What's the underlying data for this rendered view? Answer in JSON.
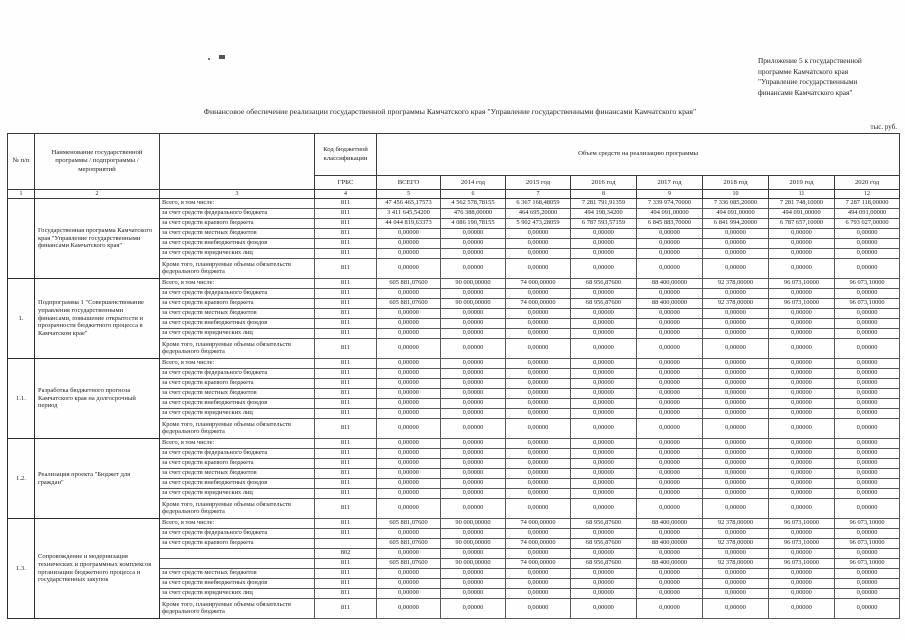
{
  "page": {
    "annotation": "Приложение 5 к государственной\nпрограмме Камчатского края\n\"Управление государственными\nфинансами Камчатского края\"",
    "title": "Финансовое обеспечение реализации государственной программы Камчатского края  \"Управление государственными финансами Камчатского края\"",
    "units": "тыс. руб."
  },
  "table": {
    "headers": {
      "num": "№ п/п",
      "name": "Наименование государственной программы / подпрограммы / мероприятий",
      "sublabel": "",
      "code_group": "Код бюджетной классификации",
      "grbs": "ГРБС",
      "volume_group": "Объем средств на реализацию программы",
      "cols": [
        "ВСЕГО",
        "2014 год",
        "2015 год",
        "2016 год",
        "2017 год",
        "2018 год",
        "2019 год",
        "2020 год"
      ],
      "col_numbers": [
        "1",
        "2",
        "3",
        "4",
        "5",
        "6",
        "7",
        "8",
        "9",
        "10",
        "11",
        "12"
      ]
    },
    "blocks": [
      {
        "num": "",
        "name": "Государственная программа Камчатского края \"Управление государственными финансами Камчатского края\"",
        "rows": [
          {
            "label": "Всего, в том числе:",
            "grbs": "811",
            "tall": false,
            "values": [
              "47 456 465,17573",
              "4 562 578,78155",
              "6 367 168,48059",
              "7 281 791,91359",
              "7 339 974,70000",
              "7 336 085,20000",
              "7 281 748,10000",
              "7 287 118,00000"
            ]
          },
          {
            "label": "за счет средств федерального бюджета",
            "grbs": "811",
            "tall": false,
            "values": [
              "3 411 645,54200",
              "476 388,00000",
              "464 695,20000",
              "494 198,34200",
              "494 091,00000",
              "494 091,00000",
              "494 091,00000",
              "494 091,00000"
            ]
          },
          {
            "label": "за счет средств краевого бюджета",
            "grbs": "811",
            "tall": false,
            "values": [
              "44 044 819,63373",
              "4 086 190,78155",
              "5 902 473,28059",
              "6 787 593,57159",
              "6 845 883,70000",
              "6 841 994,20000",
              "6 787 657,10000",
              "6 793 027,00000"
            ]
          },
          {
            "label": "за счет средств местных бюджетов",
            "grbs": "811",
            "tall": false,
            "values": [
              "0,00000",
              "0,00000",
              "0,00000",
              "0,00000",
              "0,00000",
              "0,00000",
              "0,00000",
              "0,00000"
            ]
          },
          {
            "label": "за счет средств внебюджетных фондов",
            "grbs": "811",
            "tall": false,
            "values": [
              "0,00000",
              "0,00000",
              "0,00000",
              "0,00000",
              "0,00000",
              "0,00000",
              "0,00000",
              "0,00000"
            ]
          },
          {
            "label": "за счет средств юридических лиц",
            "grbs": "811",
            "tall": false,
            "values": [
              "0,00000",
              "0,00000",
              "0,00000",
              "0,00000",
              "0,00000",
              "0,00000",
              "0,00000",
              "0,00000"
            ]
          },
          {
            "label": "Кроме того, планируемые объемы обязательств федерального бюджета",
            "grbs": "811",
            "tall": true,
            "values": [
              "0,00000",
              "0,00000",
              "0,00000",
              "0,00000",
              "0,00000",
              "0,00000",
              "0,00000",
              "0,00000"
            ]
          }
        ]
      },
      {
        "num": "1.",
        "name": "Подпрограмма 1 \"Совершенствование управления государственными финансами, повышение открытости и прозрачности бюджетного процесса в Камчатском крае\"",
        "rows": [
          {
            "label": "Всего, в том числе:",
            "grbs": "811",
            "tall": false,
            "values": [
              "605 881,07600",
              "90 000,00000",
              "74 000,00000",
              "68 956,87600",
              "88 400,00000",
              "92 378,00000",
              "96 073,10000",
              "96 073,10000"
            ]
          },
          {
            "label": "за счет средств федерального бюджета",
            "grbs": "811",
            "tall": false,
            "values": [
              "0,00000",
              "0,00000",
              "0,00000",
              "0,00000",
              "0,00000",
              "0,00000",
              "0,00000",
              "0,00000"
            ]
          },
          {
            "label": "за счет средств краевого бюджета",
            "grbs": "811",
            "tall": false,
            "values": [
              "605 881,07600",
              "90 000,00000",
              "74 000,00000",
              "68 956,87600",
              "88 400,00000",
              "92 378,00000",
              "96 073,10000",
              "96 073,10000"
            ]
          },
          {
            "label": "за счет средств местных бюджетов",
            "grbs": "811",
            "tall": false,
            "values": [
              "0,00000",
              "0,00000",
              "0,00000",
              "0,00000",
              "0,00000",
              "0,00000",
              "0,00000",
              "0,00000"
            ]
          },
          {
            "label": "за счет средств внебюджетных фондов",
            "grbs": "811",
            "tall": false,
            "values": [
              "0,00000",
              "0,00000",
              "0,00000",
              "0,00000",
              "0,00000",
              "0,00000",
              "0,00000",
              "0,00000"
            ]
          },
          {
            "label": "за счет средств юридических лиц",
            "grbs": "811",
            "tall": false,
            "values": [
              "0,00000",
              "0,00000",
              "0,00000",
              "0,00000",
              "0,00000",
              "0,00000",
              "0,00000",
              "0,00000"
            ]
          },
          {
            "label": "Кроме того, планируемые объемы обязательств федерального бюджета",
            "grbs": "811",
            "tall": true,
            "values": [
              "0,00000",
              "0,00000",
              "0,00000",
              "0,00000",
              "0,00000",
              "0,00000",
              "0,00000",
              "0,00000"
            ]
          }
        ]
      },
      {
        "num": "1.1.",
        "name": "Разработка бюджетного прогноза Камчатского края на долгосрочный период",
        "rows": [
          {
            "label": "Всего, в том числе:",
            "grbs": "811",
            "tall": false,
            "values": [
              "0,00000",
              "0,00000",
              "0,00000",
              "0,00000",
              "0,00000",
              "0,00000",
              "0,00000",
              "0,00000"
            ]
          },
          {
            "label": "за счет средств федерального бюджета",
            "grbs": "811",
            "tall": false,
            "values": [
              "0,00000",
              "0,00000",
              "0,00000",
              "0,00000",
              "0,00000",
              "0,00000",
              "0,00000",
              "0,00000"
            ]
          },
          {
            "label": "за счет средств краевого бюджета",
            "grbs": "811",
            "tall": false,
            "values": [
              "0,00000",
              "0,00000",
              "0,00000",
              "0,00000",
              "0,00000",
              "0,00000",
              "0,00000",
              "0,00000"
            ]
          },
          {
            "label": "за счет средств местных бюджетов",
            "grbs": "811",
            "tall": false,
            "values": [
              "0,00000",
              "0,00000",
              "0,00000",
              "0,00000",
              "0,00000",
              "0,00000",
              "0,00000",
              "0,00000"
            ]
          },
          {
            "label": "за счет средств внебюджетных фондов",
            "grbs": "811",
            "tall": false,
            "values": [
              "0,00000",
              "0,00000",
              "0,00000",
              "0,00000",
              "0,00000",
              "0,00000",
              "0,00000",
              "0,00000"
            ]
          },
          {
            "label": "за счет средств юридических лиц",
            "grbs": "811",
            "tall": false,
            "values": [
              "0,00000",
              "0,00000",
              "0,00000",
              "0,00000",
              "0,00000",
              "0,00000",
              "0,00000",
              "0,00000"
            ]
          },
          {
            "label": "Кроме того, планируемые объемы обязательств федерального бюджета",
            "grbs": "811",
            "tall": true,
            "values": [
              "0,00000",
              "0,00000",
              "0,00000",
              "0,00000",
              "0,00000",
              "0,00000",
              "0,00000",
              "0,00000"
            ]
          }
        ]
      },
      {
        "num": "1.2.",
        "name": "Реализация проекта \"Бюджет для граждан\"",
        "rows": [
          {
            "label": "Всего, в том числе:",
            "grbs": "811",
            "tall": false,
            "values": [
              "0,00000",
              "0,00000",
              "0,00000",
              "0,00000",
              "0,00000",
              "0,00000",
              "0,00000",
              "0,00000"
            ]
          },
          {
            "label": "за счет средств федерального бюджета",
            "grbs": "811",
            "tall": false,
            "values": [
              "0,00000",
              "0,00000",
              "0,00000",
              "0,00000",
              "0,00000",
              "0,00000",
              "0,00000",
              "0,00000"
            ]
          },
          {
            "label": "за счет средств краевого бюджета",
            "grbs": "811",
            "tall": false,
            "values": [
              "0,00000",
              "0,00000",
              "0,00000",
              "0,00000",
              "0,00000",
              "0,00000",
              "0,00000",
              "0,00000"
            ]
          },
          {
            "label": "за счет средств местных бюджетов",
            "grbs": "811",
            "tall": false,
            "values": [
              "0,00000",
              "0,00000",
              "0,00000",
              "0,00000",
              "0,00000",
              "0,00000",
              "0,00000",
              "0,00000"
            ]
          },
          {
            "label": "за счет средств внебюджетных фондов",
            "grbs": "811",
            "tall": false,
            "values": [
              "0,00000",
              "0,00000",
              "0,00000",
              "0,00000",
              "0,00000",
              "0,00000",
              "0,00000",
              "0,00000"
            ]
          },
          {
            "label": "за счет средств юридических лиц",
            "grbs": "811",
            "tall": false,
            "values": [
              "0,00000",
              "0,00000",
              "0,00000",
              "0,00000",
              "0,00000",
              "0,00000",
              "0,00000",
              "0,00000"
            ]
          },
          {
            "label": "Кроме того, планируемые объемы обязательств федерального бюджета",
            "grbs": "811",
            "tall": true,
            "values": [
              "0,00000",
              "0,00000",
              "0,00000",
              "0,00000",
              "0,00000",
              "0,00000",
              "0,00000",
              "0,00000"
            ]
          }
        ]
      },
      {
        "num": "1.3.",
        "name": "Сопровождение и модернизация технических и программных комплексов организации бюджетного процесса и государственных закупок",
        "rows": [
          {
            "label": "Всего, в том числе:",
            "grbs": "811",
            "tall": false,
            "values": [
              "605 881,07600",
              "90 000,00000",
              "74 000,00000",
              "68 956,87600",
              "88 400,00000",
              "92 378,00000",
              "96 073,10000",
              "96 073,10000"
            ]
          },
          {
            "label": "за счет средств федерального бюджета",
            "grbs": "811",
            "tall": false,
            "values": [
              "0,00000",
              "0,00000",
              "0,00000",
              "0,00000",
              "0,00000",
              "0,00000",
              "0,00000",
              "0,00000"
            ]
          },
          {
            "label": "за счет средств краевого бюджета",
            "grbs": "",
            "tall": false,
            "values": [
              "605 881,07600",
              "90 000,00000",
              "74 000,00000",
              "68 956,87600",
              "88 400,00000",
              "92 378,00000",
              "96 073,10000",
              "96 073,10000"
            ]
          },
          {
            "label": "",
            "grbs": "802",
            "tall": false,
            "values": [
              "0,00000",
              "0,00000",
              "0,00000",
              "0,00000",
              "0,00000",
              "0,00000",
              "0,00000",
              "0,00000"
            ]
          },
          {
            "label": "",
            "grbs": "811",
            "tall": false,
            "values": [
              "605 881,07600",
              "90 000,00000",
              "74 000,00000",
              "68 956,87600",
              "88 400,00000",
              "92 378,00000",
              "96 073,10000",
              "96 073,10000"
            ]
          },
          {
            "label": "за счет средств местных бюджетов",
            "grbs": "811",
            "tall": false,
            "values": [
              "0,00000",
              "0,00000",
              "0,00000",
              "0,00000",
              "0,00000",
              "0,00000",
              "0,00000",
              "0,00000"
            ]
          },
          {
            "label": "за счет средств внебюджетных фондов",
            "grbs": "811",
            "tall": false,
            "values": [
              "0,00000",
              "0,00000",
              "0,00000",
              "0,00000",
              "0,00000",
              "0,00000",
              "0,00000",
              "0,00000"
            ]
          },
          {
            "label": "за счет средств юридических лиц",
            "grbs": "811",
            "tall": false,
            "values": [
              "0,00000",
              "0,00000",
              "0,00000",
              "0,00000",
              "0,00000",
              "0,00000",
              "0,00000",
              "0,00000"
            ]
          },
          {
            "label": "Кроме того, планируемые объемы обязательств федерального бюджета",
            "grbs": "811",
            "tall": true,
            "values": [
              "0,00000",
              "0,00000",
              "0,00000",
              "0,00000",
              "0,00000",
              "0,00000",
              "0,00000",
              "0,00000"
            ]
          }
        ]
      }
    ]
  }
}
